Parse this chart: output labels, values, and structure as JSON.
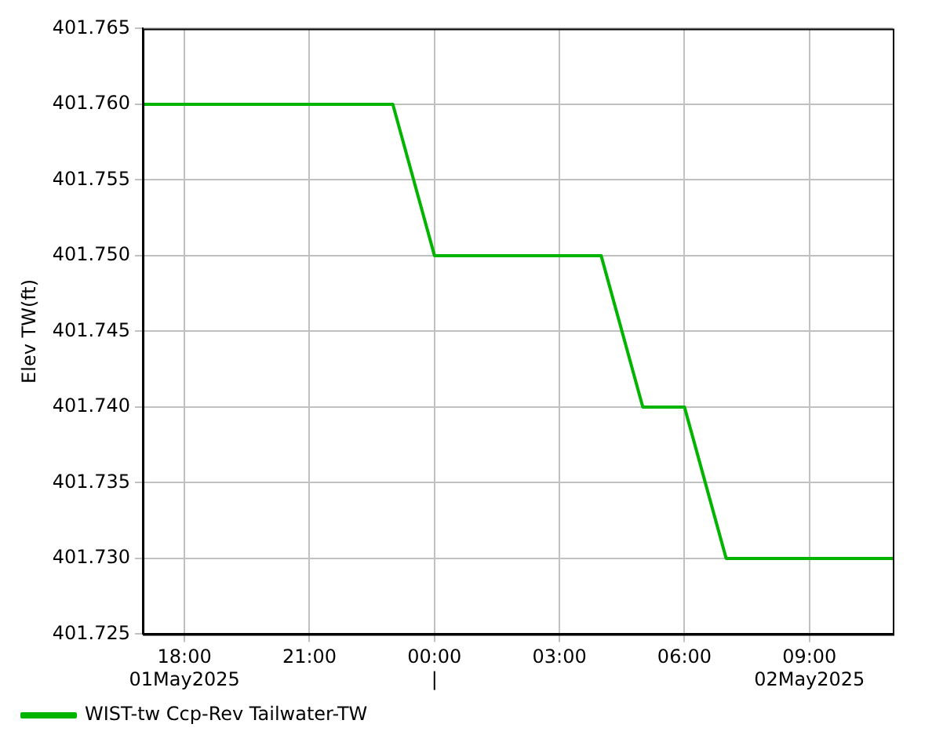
{
  "chart_data": {
    "type": "line",
    "ylabel": "Elev TW(ft)",
    "x": [
      "2025-05-01T17:00",
      "2025-05-01T23:00",
      "2025-05-02T00:00",
      "2025-05-02T04:00",
      "2025-05-02T05:00",
      "2025-05-02T06:00",
      "2025-05-02T07:00",
      "2025-05-02T11:00"
    ],
    "series": [
      {
        "name": "WIST-tw Ccp-Rev Tailwater-TW",
        "color": "#00b400",
        "values": [
          401.76,
          401.76,
          401.75,
          401.75,
          401.74,
          401.74,
          401.73,
          401.73
        ]
      }
    ],
    "xlim": [
      "2025-05-01T17:00",
      "2025-05-02T11:00"
    ],
    "xticks": [
      {
        "value": "2025-05-01T18:00",
        "label": "18:00\n01May2025"
      },
      {
        "value": "2025-05-01T21:00",
        "label": "21:00"
      },
      {
        "value": "2025-05-02T00:00",
        "label": "00:00\n|"
      },
      {
        "value": "2025-05-02T03:00",
        "label": "03:00"
      },
      {
        "value": "2025-05-02T06:00",
        "label": "06:00"
      },
      {
        "value": "2025-05-02T09:00",
        "label": "09:00\n02May2025"
      }
    ],
    "ylim": [
      401.725,
      401.765
    ],
    "yticks": [
      {
        "value": 401.725,
        "label": "401.725"
      },
      {
        "value": 401.73,
        "label": "401.730"
      },
      {
        "value": 401.735,
        "label": "401.735"
      },
      {
        "value": 401.74,
        "label": "401.740"
      },
      {
        "value": 401.745,
        "label": "401.745"
      },
      {
        "value": 401.75,
        "label": "401.750"
      },
      {
        "value": 401.755,
        "label": "401.755"
      },
      {
        "value": 401.76,
        "label": "401.760"
      },
      {
        "value": 401.765,
        "label": "401.765"
      }
    ],
    "grid": true,
    "legend": "bottom left",
    "marker": "none",
    "line_style": "solid"
  }
}
